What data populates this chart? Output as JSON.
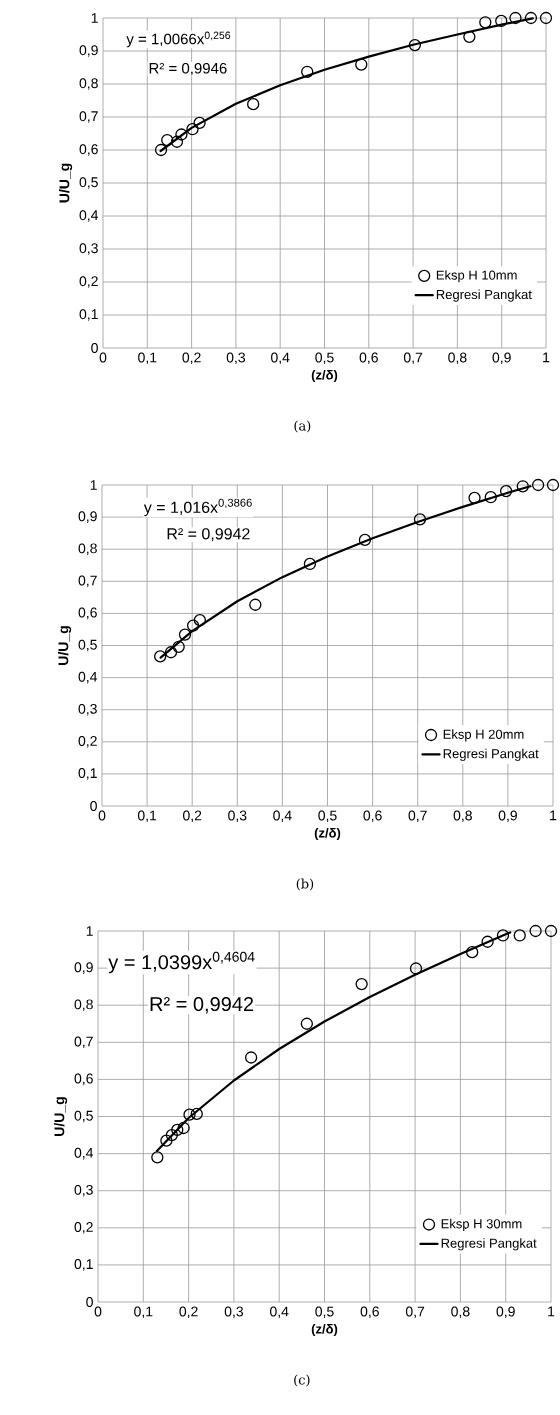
{
  "chart_data": [
    {
      "type": "scatter",
      "xlabel": "(z/δ)",
      "ylabel": "U/U_g",
      "xlim": [
        0,
        1
      ],
      "ylim": [
        0,
        1
      ],
      "xticks": [
        0,
        {
          "value": 0.1,
          "label": "0,1"
        },
        {
          "value": 0.2,
          "label": "0,2"
        },
        {
          "value": 0.3,
          "label": "0,3"
        },
        {
          "value": 0.4,
          "label": "0,4"
        },
        {
          "value": 0.5,
          "label": "0,5"
        },
        {
          "value": 0.6,
          "label": "0,6"
        },
        {
          "value": 0.7,
          "label": "0,7"
        },
        {
          "value": 0.8,
          "label": "0,8"
        },
        {
          "value": 0.9,
          "label": "0,9"
        },
        1
      ],
      "yticks": [
        0,
        {
          "value": 0.1,
          "label": "0,1"
        },
        {
          "value": 0.2,
          "label": "0,2"
        },
        {
          "value": 0.3,
          "label": "0,3"
        },
        {
          "value": 0.4,
          "label": "0,4"
        },
        {
          "value": 0.5,
          "label": "0,5"
        },
        {
          "value": 0.6,
          "label": "0,6"
        },
        {
          "value": 0.7,
          "label": "0,7"
        },
        {
          "value": 0.8,
          "label": "0,8"
        },
        {
          "value": 0.9,
          "label": "0,9"
        },
        1
      ],
      "grid": true,
      "legend": "bottom right",
      "annotations": [
        "y = 1,0066x$^{0,256}$",
        "R² = 0,9946",
        "(a)"
      ],
      "series": [
        {
          "name": "Eksp H 10mm",
          "marker": "circle",
          "color": "#000000",
          "x": [
            0.131,
            0.145,
            0.167,
            0.177,
            0.202,
            0.218,
            0.339,
            0.461,
            0.583,
            0.704,
            0.827,
            0.863,
            0.899,
            0.931,
            0.966,
            1.0
          ],
          "values": [
            0.6,
            0.63,
            0.625,
            0.647,
            0.663,
            0.682,
            0.739,
            0.837,
            0.859,
            0.918,
            0.943,
            0.987,
            0.991,
            1.0,
            1.0,
            1.0
          ]
        },
        {
          "name": "Regresi Pangkat",
          "type": "line",
          "marker": "none",
          "line_style": "solid",
          "color": "#000000",
          "x": [
            0.13,
            0.2,
            0.3,
            0.4,
            0.5,
            0.6,
            0.7,
            0.8,
            0.9,
            0.97
          ],
          "values": [
            0.597,
            0.667,
            0.74,
            0.796,
            0.843,
            0.883,
            0.919,
            0.95,
            0.98,
            0.999
          ]
        }
      ]
    },
    {
      "type": "scatter",
      "xlabel": "(z/δ)",
      "ylabel": "U/U_g",
      "xlim": [
        0,
        1
      ],
      "ylim": [
        0,
        1
      ],
      "xticks": [
        0,
        {
          "value": 0.1,
          "label": "0,1"
        },
        {
          "value": 0.2,
          "label": "0,2"
        },
        {
          "value": 0.3,
          "label": "0,3"
        },
        {
          "value": 0.4,
          "label": "0,4"
        },
        {
          "value": 0.5,
          "label": "0,5"
        },
        {
          "value": 0.6,
          "label": "0,6"
        },
        {
          "value": 0.7,
          "label": "0,7"
        },
        {
          "value": 0.8,
          "label": "0,8"
        },
        {
          "value": 0.9,
          "label": "0,9"
        },
        1
      ],
      "yticks": [
        0,
        {
          "value": 0.1,
          "label": "0,1"
        },
        {
          "value": 0.2,
          "label": "0,2"
        },
        {
          "value": 0.3,
          "label": "0,3"
        },
        {
          "value": 0.4,
          "label": "0,4"
        },
        {
          "value": 0.5,
          "label": "0,5"
        },
        {
          "value": 0.6,
          "label": "0,6"
        },
        {
          "value": 0.7,
          "label": "0,7"
        },
        {
          "value": 0.8,
          "label": "0,8"
        },
        {
          "value": 0.9,
          "label": "0,9"
        },
        1
      ],
      "grid": true,
      "legend": "bottom right",
      "annotations": [
        "y = 1,016x$^{0,3866}$",
        "R² = 0,9942",
        "(b)"
      ],
      "series": [
        {
          "name": "Eksp H 20mm",
          "marker": "circle",
          "color": "#000000",
          "x": [
            0.129,
            0.153,
            0.17,
            0.184,
            0.202,
            0.217,
            0.34,
            0.461,
            0.583,
            0.705,
            0.826,
            0.862,
            0.896,
            0.933,
            0.967,
            1.0
          ],
          "values": [
            0.466,
            0.479,
            0.496,
            0.534,
            0.562,
            0.579,
            0.627,
            0.754,
            0.829,
            0.893,
            0.96,
            0.962,
            0.981,
            0.996,
            1.0,
            1.0
          ]
        },
        {
          "name": "Regresi Pangkat",
          "type": "line",
          "marker": "none",
          "line_style": "solid",
          "color": "#000000",
          "x": [
            0.13,
            0.2,
            0.3,
            0.4,
            0.5,
            0.6,
            0.7,
            0.8,
            0.9,
            0.95
          ],
          "values": [
            0.462,
            0.545,
            0.638,
            0.713,
            0.777,
            0.834,
            0.885,
            0.932,
            0.976,
            0.996
          ]
        }
      ]
    },
    {
      "type": "scatter",
      "xlabel": "(z/δ)",
      "ylabel": "U/U_g",
      "xlim": [
        0,
        1
      ],
      "ylim": [
        0,
        1
      ],
      "xticks": [
        0,
        {
          "value": 0.1,
          "label": "0,1"
        },
        {
          "value": 0.2,
          "label": "0,2"
        },
        {
          "value": 0.3,
          "label": "0,3"
        },
        {
          "value": 0.4,
          "label": "0,4"
        },
        {
          "value": 0.5,
          "label": "0,5"
        },
        {
          "value": 0.6,
          "label": "0,6"
        },
        {
          "value": 0.7,
          "label": "0,7"
        },
        {
          "value": 0.8,
          "label": "0,8"
        },
        {
          "value": 0.9,
          "label": "0,9"
        },
        1
      ],
      "yticks": [
        0,
        {
          "value": 0.1,
          "label": "0,1"
        },
        {
          "value": 0.2,
          "label": "0,2"
        },
        {
          "value": 0.3,
          "label": "0,3"
        },
        {
          "value": 0.4,
          "label": "0,4"
        },
        {
          "value": 0.5,
          "label": "0,5"
        },
        {
          "value": 0.6,
          "label": "0,6"
        },
        {
          "value": 0.7,
          "label": "0,7"
        },
        {
          "value": 0.8,
          "label": "0,8"
        },
        {
          "value": 0.9,
          "label": "0,9"
        },
        1
      ],
      "grid": true,
      "legend": "bottom right",
      "annotations": [
        "y = 1,0399x$^{0,4604}$",
        "R² = 0,9942",
        "(c)"
      ],
      "series": [
        {
          "name": "Eksp H 30mm",
          "marker": "circle",
          "color": "#000000",
          "x": [
            0.131,
            0.151,
            0.163,
            0.175,
            0.189,
            0.202,
            0.218,
            0.338,
            0.461,
            0.582,
            0.702,
            0.826,
            0.86,
            0.894,
            0.931,
            0.966,
            1.0
          ],
          "values": [
            0.39,
            0.435,
            0.45,
            0.464,
            0.469,
            0.505,
            0.507,
            0.659,
            0.75,
            0.857,
            0.899,
            0.943,
            0.971,
            0.988,
            0.988,
            1.0,
            1.0
          ]
        },
        {
          "name": "Regresi Pangkat",
          "type": "line",
          "marker": "none",
          "line_style": "solid",
          "color": "#000000",
          "x": [
            0.13,
            0.2,
            0.3,
            0.4,
            0.5,
            0.6,
            0.7,
            0.8,
            0.9,
            0.91
          ],
          "values": [
            0.407,
            0.496,
            0.597,
            0.682,
            0.756,
            0.822,
            0.882,
            0.938,
            0.991,
            0.996
          ]
        }
      ]
    }
  ]
}
